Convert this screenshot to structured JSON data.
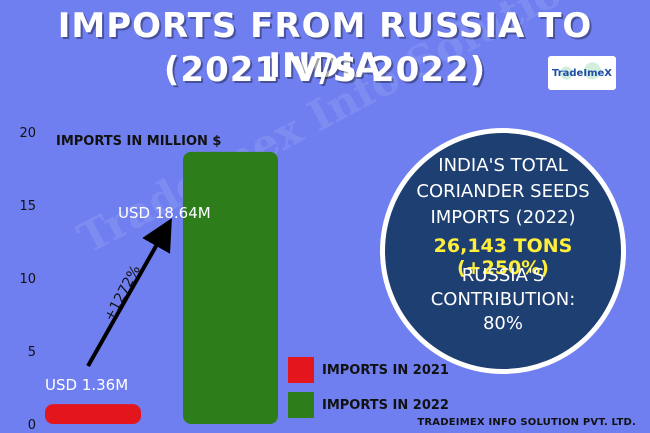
{
  "title_line1": "IMPORTS FROM RUSSIA TO INDIA",
  "title_line2": "(2021 V/S 2022)",
  "logo_text": "TradeImeX",
  "watermark": "Tradeimex Info Solution Pvt. Ltd.",
  "info": {
    "line1": "INDIA'S TOTAL",
    "line2": "CORIANDER SEEDS",
    "line3": "IMPORTS (2022)",
    "highlight": "26,143 TONS (+250%)",
    "line5": "RUSSIA'S",
    "line6": "CONTRIBUTION:",
    "line7": "80%"
  },
  "footer": "TRADEIMEX INFO SOLUTION PVT. LTD.",
  "chart_data": {
    "type": "bar",
    "ylabel": "IMPORTS IN MILLION $",
    "ylim": [
      0,
      20
    ],
    "yticks": [
      0,
      5,
      10,
      15,
      20
    ],
    "categories": [
      "IMPORTS IN 2021",
      "IMPORTS IN 2022"
    ],
    "values": [
      1.36,
      18.64
    ],
    "value_labels": [
      "USD 1.36M",
      "USD 18.64M"
    ],
    "colors": [
      "#e3161e",
      "#2e7d1b"
    ],
    "annotation": "+1272%",
    "legend": [
      {
        "label": "IMPORTS IN 2021",
        "color": "#e3161e"
      },
      {
        "label": "IMPORTS IN 2022",
        "color": "#2e7d1b"
      }
    ],
    "legend_position": "bottom-right"
  }
}
